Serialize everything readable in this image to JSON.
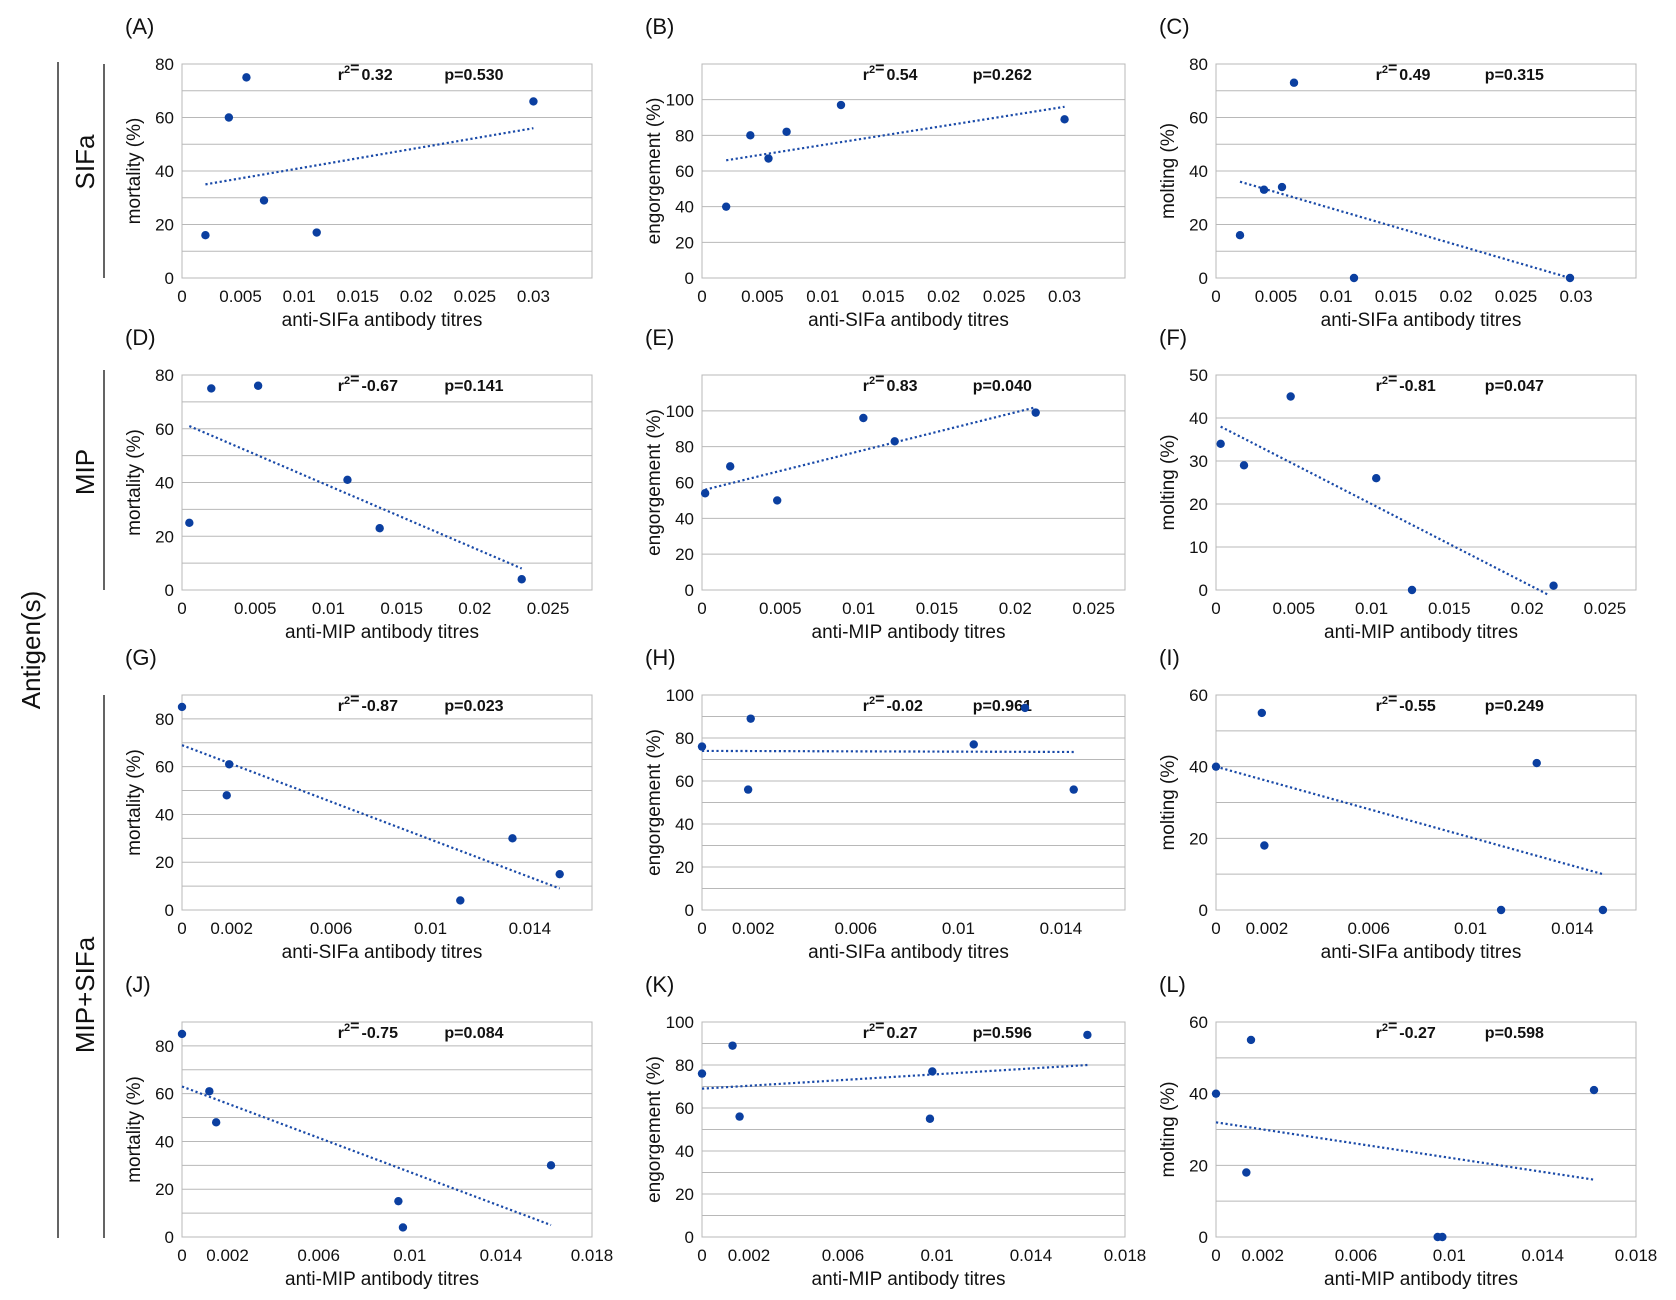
{
  "figure": {
    "outer_label": "Antigen(s)",
    "row_groups": [
      {
        "label": "SIFa"
      },
      {
        "label": "MIP"
      },
      {
        "label": "MIP+SIFa"
      }
    ]
  },
  "chart_data": [
    {
      "panel": "(A)",
      "type": "scatter",
      "xlabel": "anti-SIFa antibody titres",
      "ylabel": "mortality (%)",
      "r2_value": "0.32",
      "p_text": "p=0.530",
      "xlim": [
        0,
        0.035
      ],
      "ylim": [
        0,
        80
      ],
      "x_ticks": [
        0,
        0.005,
        0.01,
        0.015,
        0.02,
        0.025,
        0.03
      ],
      "x_tick_labels": [
        "0",
        "0.005",
        "0.01",
        "0.015",
        "0.02",
        "0.025",
        "0.03"
      ],
      "y_ticks": [
        0,
        20,
        40,
        60,
        80
      ],
      "y_tick_labels": [
        "0",
        "20",
        "40",
        "60",
        "80"
      ],
      "y_grid": [
        0,
        10,
        20,
        30,
        40,
        50,
        60,
        70,
        80
      ],
      "x": [
        0.002,
        0.004,
        0.0055,
        0.007,
        0.0115,
        0.03
      ],
      "y": [
        16,
        60,
        75,
        29,
        17,
        66
      ],
      "trend": [
        [
          0.002,
          35
        ],
        [
          0.03,
          56
        ]
      ]
    },
    {
      "panel": "(B)",
      "type": "scatter",
      "xlabel": "anti-SIFa antibody titres",
      "ylabel": "engorgement (%)",
      "r2_value": "0.54",
      "p_text": "p=0.262",
      "xlim": [
        0,
        0.035
      ],
      "ylim": [
        0,
        120
      ],
      "x_ticks": [
        0,
        0.005,
        0.01,
        0.015,
        0.02,
        0.025,
        0.03
      ],
      "x_tick_labels": [
        "0",
        "0.005",
        "0.01",
        "0.015",
        "0.02",
        "0.025",
        "0.03"
      ],
      "y_ticks": [
        0,
        20,
        40,
        60,
        80,
        100
      ],
      "y_tick_labels": [
        "0",
        "20",
        "40",
        "60",
        "80",
        "100"
      ],
      "y_grid": [
        0,
        20,
        40,
        60,
        80,
        100,
        120
      ],
      "x": [
        0.002,
        0.004,
        0.0055,
        0.007,
        0.0115,
        0.03
      ],
      "y": [
        40,
        80,
        67,
        82,
        97,
        89
      ],
      "trend": [
        [
          0.002,
          66
        ],
        [
          0.03,
          96
        ]
      ]
    },
    {
      "panel": "(C)",
      "type": "scatter",
      "xlabel": "anti-SIFa antibody titres",
      "ylabel": "molting (%)",
      "r2_value": "0.49",
      "p_text": "p=0.315",
      "xlim": [
        0,
        0.035
      ],
      "ylim": [
        0,
        80
      ],
      "x_ticks": [
        0,
        0.005,
        0.01,
        0.015,
        0.02,
        0.025,
        0.03
      ],
      "x_tick_labels": [
        "0",
        "0.005",
        "0.01",
        "0.015",
        "0.02",
        "0.025",
        "0.03"
      ],
      "y_ticks": [
        0,
        20,
        40,
        60,
        80
      ],
      "y_tick_labels": [
        "0",
        "20",
        "40",
        "60",
        "80"
      ],
      "y_grid": [
        0,
        10,
        20,
        30,
        40,
        50,
        60,
        70,
        80
      ],
      "x": [
        0.002,
        0.004,
        0.0055,
        0.0065,
        0.0115,
        0.0295
      ],
      "y": [
        16,
        33,
        34,
        73,
        0,
        0
      ],
      "trend": [
        [
          0.002,
          36
        ],
        [
          0.0295,
          0
        ]
      ]
    },
    {
      "panel": "(D)",
      "type": "scatter",
      "xlabel": "anti-MIP antibody titres",
      "ylabel": "mortality (%)",
      "r2_value": "-0.67",
      "p_text": "p=0.141",
      "xlim": [
        0,
        0.028
      ],
      "ylim": [
        0,
        80
      ],
      "x_ticks": [
        0,
        0.005,
        0.01,
        0.015,
        0.02,
        0.025
      ],
      "x_tick_labels": [
        "0",
        "0.005",
        "0.01",
        "0.015",
        "0.02",
        "0.025"
      ],
      "y_ticks": [
        0,
        20,
        40,
        60,
        80
      ],
      "y_tick_labels": [
        "0",
        "20",
        "40",
        "60",
        "80"
      ],
      "y_grid": [
        0,
        10,
        20,
        30,
        40,
        50,
        60,
        70,
        80
      ],
      "x": [
        0.0005,
        0.002,
        0.0052,
        0.0113,
        0.0135,
        0.0232
      ],
      "y": [
        25,
        75,
        76,
        41,
        23,
        4
      ],
      "trend": [
        [
          0.0005,
          61
        ],
        [
          0.0232,
          8
        ]
      ]
    },
    {
      "panel": "(E)",
      "type": "scatter",
      "xlabel": "anti-MIP antibody titres",
      "ylabel": "engorgement (%)",
      "r2_value": "0.83",
      "p_text": "p=0.040",
      "xlim": [
        0,
        0.027
      ],
      "ylim": [
        0,
        120
      ],
      "x_ticks": [
        0,
        0.005,
        0.01,
        0.015,
        0.02,
        0.025
      ],
      "x_tick_labels": [
        "0",
        "0.005",
        "0.01",
        "0.015",
        "0.02",
        "0.025"
      ],
      "y_ticks": [
        0,
        20,
        40,
        60,
        80,
        100
      ],
      "y_tick_labels": [
        "0",
        "20",
        "40",
        "60",
        "80",
        "100"
      ],
      "y_grid": [
        0,
        20,
        40,
        60,
        80,
        100,
        120
      ],
      "x": [
        0.0002,
        0.0018,
        0.0048,
        0.0103,
        0.0123,
        0.0213
      ],
      "y": [
        54,
        69,
        50,
        96,
        83,
        99
      ],
      "trend": [
        [
          0.0002,
          56
        ],
        [
          0.0213,
          102
        ]
      ]
    },
    {
      "panel": "(F)",
      "type": "scatter",
      "xlabel": "anti-MIP antibody titres",
      "ylabel": "molting (%)",
      "r2_value": "-0.81",
      "p_text": "p=0.047",
      "xlim": [
        0,
        0.027
      ],
      "ylim": [
        0,
        50
      ],
      "x_ticks": [
        0,
        0.005,
        0.01,
        0.015,
        0.02,
        0.025
      ],
      "x_tick_labels": [
        "0",
        "0.005",
        "0.01",
        "0.015",
        "0.02",
        "0.025"
      ],
      "y_ticks": [
        0,
        10,
        20,
        30,
        40,
        50
      ],
      "y_tick_labels": [
        "0",
        "10",
        "20",
        "30",
        "40",
        "50"
      ],
      "y_grid": [
        0,
        10,
        20,
        30,
        40,
        50
      ],
      "x": [
        0.0003,
        0.0018,
        0.0048,
        0.0103,
        0.0126,
        0.0217
      ],
      "y": [
        34,
        29,
        45,
        26,
        0,
        1
      ],
      "trend": [
        [
          0.0003,
          38
        ],
        [
          0.0213,
          -1
        ]
      ]
    },
    {
      "panel": "(G)",
      "type": "scatter",
      "xlabel": "anti-SIFa antibody titres",
      "ylabel": "mortality (%)",
      "r2_value": "-0.87",
      "p_text": "p=0.023",
      "xlim": [
        0,
        0.0165
      ],
      "ylim": [
        0,
        90
      ],
      "x_ticks": [
        0,
        0.002,
        0.006,
        0.01,
        0.014
      ],
      "x_tick_labels": [
        "0",
        "0.002",
        "0.006",
        "0.01",
        "0.014"
      ],
      "y_ticks": [
        0,
        20,
        40,
        60,
        80
      ],
      "y_tick_labels": [
        "0",
        "20",
        "40",
        "60",
        "80"
      ],
      "y_grid": [
        0,
        10,
        20,
        30,
        40,
        50,
        60,
        70,
        80,
        90
      ],
      "x": [
        0.0,
        0.0018,
        0.0019,
        0.0112,
        0.0133,
        0.0152
      ],
      "y": [
        85,
        48,
        61,
        4,
        30,
        15
      ],
      "trend": [
        [
          0.0,
          69
        ],
        [
          0.0152,
          9
        ]
      ]
    },
    {
      "panel": "(H)",
      "type": "scatter",
      "xlabel": "anti-SIFa antibody titres",
      "ylabel": "engorgement (%)",
      "r2_value": "-0.02",
      "p_text": "p=0.961",
      "xlim": [
        0,
        0.0165
      ],
      "ylim": [
        0,
        100
      ],
      "x_ticks": [
        0,
        0.002,
        0.006,
        0.01,
        0.014
      ],
      "x_tick_labels": [
        "0",
        "0.002",
        "0.006",
        "0.01",
        "0.014"
      ],
      "y_ticks": [
        0,
        20,
        40,
        60,
        80,
        100
      ],
      "y_tick_labels": [
        "0",
        "20",
        "40",
        "60",
        "80",
        "100"
      ],
      "y_grid": [
        0,
        10,
        20,
        30,
        40,
        50,
        60,
        70,
        80,
        90,
        100
      ],
      "x": [
        0.0,
        0.0018,
        0.0019,
        0.0106,
        0.0126,
        0.0145
      ],
      "y": [
        76,
        56,
        89,
        77,
        94,
        56
      ],
      "trend": [
        [
          0.0,
          74
        ],
        [
          0.0145,
          73.5
        ]
      ]
    },
    {
      "panel": "(I)",
      "type": "scatter",
      "xlabel": "anti-SIFa antibody titres",
      "ylabel": "molting (%)",
      "r2_value": "-0.55",
      "p_text": "p=0.249",
      "xlim": [
        0,
        0.0165
      ],
      "ylim": [
        0,
        60
      ],
      "x_ticks": [
        0,
        0.002,
        0.006,
        0.01,
        0.014
      ],
      "x_tick_labels": [
        "0",
        "0.002",
        "0.006",
        "0.01",
        "0.014"
      ],
      "y_ticks": [
        0,
        20,
        40,
        60
      ],
      "y_tick_labels": [
        "0",
        "20",
        "40",
        "60"
      ],
      "y_grid": [
        0,
        10,
        20,
        30,
        40,
        50,
        60
      ],
      "x": [
        0.0,
        0.0018,
        0.0019,
        0.0112,
        0.0126,
        0.0152
      ],
      "y": [
        40,
        55,
        18,
        0,
        41,
        0
      ],
      "trend": [
        [
          0.0,
          40
        ],
        [
          0.0152,
          10
        ]
      ]
    },
    {
      "panel": "(J)",
      "type": "scatter",
      "xlabel": "anti-MIP antibody titres",
      "ylabel": "mortality (%)",
      "r2_value": "-0.75",
      "p_text": "p=0.084",
      "xlim": [
        0,
        0.018
      ],
      "ylim": [
        0,
        90
      ],
      "x_ticks": [
        0,
        0.002,
        0.006,
        0.01,
        0.014,
        0.018
      ],
      "x_tick_labels": [
        "0",
        "0.002",
        "0.006",
        "0.01",
        "0.014",
        "0.018"
      ],
      "y_ticks": [
        0,
        20,
        40,
        60,
        80
      ],
      "y_tick_labels": [
        "0",
        "20",
        "40",
        "60",
        "80"
      ],
      "y_grid": [
        0,
        10,
        20,
        30,
        40,
        50,
        60,
        70,
        80,
        90
      ],
      "x": [
        0.0,
        0.0012,
        0.0015,
        0.0095,
        0.0097,
        0.0162
      ],
      "y": [
        85,
        61,
        48,
        15,
        4,
        30
      ],
      "trend": [
        [
          0.0,
          63
        ],
        [
          0.0162,
          5
        ]
      ]
    },
    {
      "panel": "(K)",
      "type": "scatter",
      "xlabel": "anti-MIP antibody titres",
      "ylabel": "engorgement (%)",
      "r2_value": "0.27",
      "p_text": "p=0.596",
      "xlim": [
        0,
        0.018
      ],
      "ylim": [
        0,
        100
      ],
      "x_ticks": [
        0,
        0.002,
        0.006,
        0.01,
        0.014,
        0.018
      ],
      "x_tick_labels": [
        "0",
        "0.002",
        "0.006",
        "0.01",
        "0.014",
        "0.018"
      ],
      "y_ticks": [
        0,
        20,
        40,
        60,
        80,
        100
      ],
      "y_tick_labels": [
        "0",
        "20",
        "40",
        "60",
        "80",
        "100"
      ],
      "y_grid": [
        0,
        10,
        20,
        30,
        40,
        50,
        60,
        70,
        80,
        90,
        100
      ],
      "x": [
        0.0,
        0.0013,
        0.0016,
        0.0097,
        0.0098,
        0.0164
      ],
      "y": [
        76,
        89,
        56,
        55,
        77,
        94
      ],
      "trend": [
        [
          0.0,
          69
        ],
        [
          0.0164,
          80
        ]
      ]
    },
    {
      "panel": "(L)",
      "type": "scatter",
      "xlabel": "anti-MIP antibody titres",
      "ylabel": "molting (%)",
      "r2_value": "-0.27",
      "p_text": "p=0.598",
      "xlim": [
        0,
        0.018
      ],
      "ylim": [
        0,
        60
      ],
      "x_ticks": [
        0,
        0.002,
        0.006,
        0.01,
        0.014,
        0.018
      ],
      "x_tick_labels": [
        "0",
        "0.002",
        "0.006",
        "0.01",
        "0.014",
        "0.018"
      ],
      "y_ticks": [
        0,
        20,
        40,
        60
      ],
      "y_tick_labels": [
        "0",
        "20",
        "40",
        "60"
      ],
      "y_grid": [
        0,
        10,
        20,
        30,
        40,
        50,
        60
      ],
      "x": [
        0.0,
        0.0013,
        0.0015,
        0.0095,
        0.0097,
        0.0162
      ],
      "y": [
        40,
        18,
        55,
        0,
        0,
        41
      ],
      "trend": [
        [
          0.0,
          32
        ],
        [
          0.0162,
          16
        ]
      ]
    }
  ]
}
